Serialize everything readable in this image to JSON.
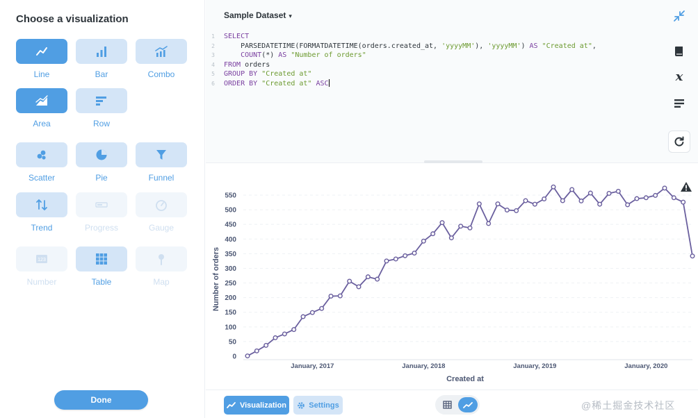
{
  "sidebar": {
    "title": "Choose a visualization",
    "done_label": "Done",
    "options": [
      {
        "id": "line",
        "label": "Line",
        "icon": "line-chart-icon",
        "state": "selected"
      },
      {
        "id": "bar",
        "label": "Bar",
        "icon": "bar-chart-icon",
        "state": "normal"
      },
      {
        "id": "combo",
        "label": "Combo",
        "icon": "combo-chart-icon",
        "state": "normal"
      },
      {
        "id": "area",
        "label": "Area",
        "icon": "area-chart-icon",
        "state": "selected"
      },
      {
        "id": "row",
        "label": "Row",
        "icon": "row-chart-icon",
        "state": "normal"
      },
      {
        "id": "scatter",
        "label": "Scatter",
        "icon": "scatter-chart-icon",
        "state": "normal"
      },
      {
        "id": "pie",
        "label": "Pie",
        "icon": "pie-chart-icon",
        "state": "normal"
      },
      {
        "id": "funnel",
        "label": "Funnel",
        "icon": "funnel-icon",
        "state": "normal"
      },
      {
        "id": "trend",
        "label": "Trend",
        "icon": "trend-icon",
        "state": "normal"
      },
      {
        "id": "progress",
        "label": "Progress",
        "icon": "progress-icon",
        "state": "disabled"
      },
      {
        "id": "gauge",
        "label": "Gauge",
        "icon": "gauge-icon",
        "state": "disabled"
      },
      {
        "id": "number",
        "label": "Number",
        "icon": "number-icon",
        "state": "disabled"
      },
      {
        "id": "table",
        "label": "Table",
        "icon": "table-icon",
        "state": "normal"
      },
      {
        "id": "map",
        "label": "Map",
        "icon": "map-pin-icon",
        "state": "disabled"
      }
    ]
  },
  "editor": {
    "dataset_label": "Sample Dataset",
    "lines": [
      {
        "n": "1",
        "parts": [
          {
            "t": "k",
            "v": "SELECT"
          }
        ]
      },
      {
        "n": "2",
        "parts": [
          {
            "t": "f",
            "v": "    PARSEDATETIME(FORMATDATETIME(orders.created_at, "
          },
          {
            "t": "s",
            "v": "'yyyyMM'"
          },
          {
            "t": "f",
            "v": "), "
          },
          {
            "t": "s",
            "v": "'yyyyMM'"
          },
          {
            "t": "f",
            "v": ") "
          },
          {
            "t": "k",
            "v": "AS"
          },
          {
            "t": "s",
            "v": " \"Created at\""
          },
          {
            "t": "f",
            "v": ","
          }
        ]
      },
      {
        "n": "3",
        "parts": [
          {
            "t": "k",
            "v": "    COUNT"
          },
          {
            "t": "f",
            "v": "(*) "
          },
          {
            "t": "k",
            "v": "AS"
          },
          {
            "t": "s",
            "v": " \"Number of orders\""
          }
        ]
      },
      {
        "n": "4",
        "parts": [
          {
            "t": "k",
            "v": "FROM"
          },
          {
            "t": "f",
            "v": " orders"
          }
        ]
      },
      {
        "n": "5",
        "parts": [
          {
            "t": "k",
            "v": "GROUP BY"
          },
          {
            "t": "s",
            "v": " \"Created at\""
          }
        ]
      },
      {
        "n": "6",
        "parts": [
          {
            "t": "k",
            "v": "ORDER BY"
          },
          {
            "t": "s",
            "v": " \"Created at\""
          },
          {
            "t": "k",
            "v": " ASC"
          }
        ]
      }
    ]
  },
  "footer": {
    "visualization_label": "Visualization",
    "settings_label": "Settings",
    "watermark": "@稀土掘金技术社区"
  },
  "colors": {
    "brand": "#509ee3",
    "line": "#6a5f9e"
  },
  "chart_data": {
    "type": "line",
    "title": "",
    "xlabel": "Created at",
    "ylabel": "Number of orders",
    "ylim": [
      0,
      550
    ],
    "yticks": [
      0,
      50,
      100,
      150,
      200,
      250,
      300,
      350,
      400,
      450,
      500,
      550
    ],
    "xtick_labels": [
      {
        "label": "January, 2017",
        "at": 7
      },
      {
        "label": "January, 2018",
        "at": 19
      },
      {
        "label": "January, 2019",
        "at": 31
      },
      {
        "label": "January, 2020",
        "at": 43
      }
    ],
    "grid": true,
    "series": [
      {
        "name": "Number of orders",
        "values": [
          1,
          18,
          37,
          63,
          76,
          91,
          135,
          149,
          163,
          205,
          206,
          256,
          237,
          271,
          263,
          325,
          332,
          343,
          352,
          393,
          418,
          456,
          404,
          444,
          438,
          520,
          453,
          520,
          499,
          497,
          531,
          519,
          537,
          578,
          531,
          569,
          530,
          557,
          519,
          556,
          563,
          517,
          538,
          541,
          549,
          574,
          541,
          526,
          342
        ]
      }
    ]
  }
}
